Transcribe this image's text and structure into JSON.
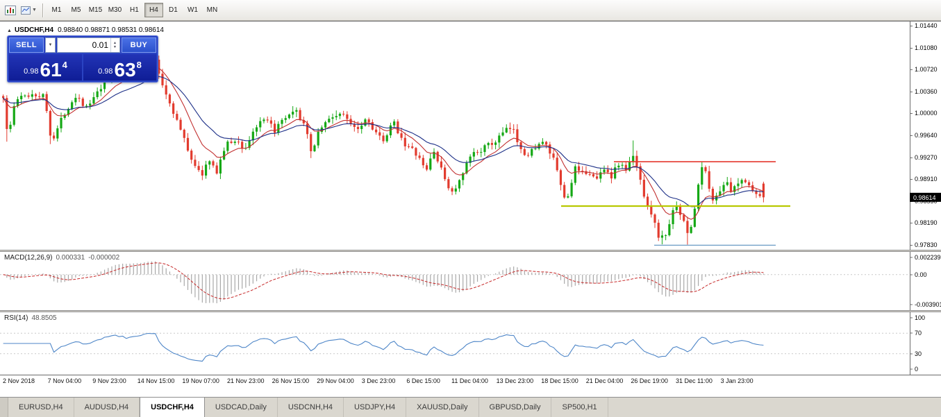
{
  "toolbar": {
    "timeframes": [
      {
        "label": "M1",
        "active": false
      },
      {
        "label": "M5",
        "active": false
      },
      {
        "label": "M15",
        "active": false
      },
      {
        "label": "M30",
        "active": false
      },
      {
        "label": "H1",
        "active": false
      },
      {
        "label": "H4",
        "active": true
      },
      {
        "label": "D1",
        "active": false
      },
      {
        "label": "W1",
        "active": false
      },
      {
        "label": "MN",
        "active": false
      }
    ]
  },
  "icons": {
    "collapse": "▲",
    "dropdown": "▼",
    "spin_up": "▲",
    "spin_down": "▼"
  },
  "chart": {
    "symbol_title": "USDCHF,H4",
    "ohlc": "0.98840 0.98871 0.98531 0.98614",
    "price_axis": [
      "1.01440",
      "1.01080",
      "1.00720",
      "1.00360",
      "1.00000",
      "0.99640",
      "0.99270",
      "0.98910",
      "0.98550",
      "0.98190",
      "0.97830"
    ],
    "current_price": "0.98614"
  },
  "trade_panel": {
    "sell_label": "SELL",
    "buy_label": "BUY",
    "volume": "0.01",
    "sell_price": {
      "prefix": "0.98",
      "big": "61",
      "pip": "4"
    },
    "buy_price": {
      "prefix": "0.98",
      "big": "63",
      "pip": "8"
    }
  },
  "macd_panel": {
    "title": "MACD(12,26,9)",
    "value_main": "0.000331",
    "value_signal": "-0.000002",
    "axis": [
      "0.002239",
      "0.00",
      "-0.003901"
    ]
  },
  "rsi_panel": {
    "title": "RSI(14)",
    "value": "48.8505",
    "axis": [
      "100",
      "70",
      "30",
      "0"
    ]
  },
  "time_axis": [
    "2 Nov 2018",
    "7 Nov 04:00",
    "9 Nov 23:00",
    "14 Nov 15:00",
    "19 Nov 07:00",
    "21 Nov 23:00",
    "26 Nov 15:00",
    "29 Nov 04:00",
    "3 Dec 23:00",
    "6 Dec 15:00",
    "11 Dec 04:00",
    "13 Dec 23:00",
    "18 Dec 15:00",
    "21 Dec 04:00",
    "26 Dec 19:00",
    "31 Dec 11:00",
    "3 Jan 23:00"
  ],
  "tabs": [
    {
      "label": "EURUSD,H4",
      "active": false
    },
    {
      "label": "AUDUSD,H4",
      "active": false
    },
    {
      "label": "USDCHF,H4",
      "active": true
    },
    {
      "label": "USDCAD,Daily",
      "active": false
    },
    {
      "label": "USDCNH,H4",
      "active": false
    },
    {
      "label": "USDJPY,H4",
      "active": false
    },
    {
      "label": "XAUUSD,Daily",
      "active": false
    },
    {
      "label": "GBPUSD,Daily",
      "active": false
    },
    {
      "label": "SP500,H1",
      "active": false
    }
  ],
  "chart_data": {
    "type": "candlestick",
    "symbol": "USDCHF",
    "timeframe": "H4",
    "ohlc": {
      "open": 0.9884,
      "high": 0.98871,
      "low": 0.98531,
      "close": 0.98614
    },
    "price_max": 1.0144,
    "price_min": 0.9783,
    "candle_count": 211,
    "seed": 1337,
    "ma_fast_period": 10,
    "ma_slow_period": 22,
    "colors": {
      "up": "#15a815",
      "down": "#e23b2e",
      "ma_fast": "#c23030",
      "ma_slow": "#1c2f87",
      "macd_hist": "#a8a8a8",
      "macd_signal": "#c62828",
      "rsi": "#4e86c8",
      "level_red": "#e4372d",
      "level_yellow": "#b8c800",
      "level_blue": "#70a0c8",
      "grid": "#c8c8c8"
    },
    "levels": [
      {
        "price": 0.992,
        "color_key": "level_red",
        "x1": 0.675,
        "x2": 0.853,
        "width": 1.6
      },
      {
        "price": 0.9847,
        "color_key": "level_yellow",
        "x1": 0.617,
        "x2": 0.869,
        "width": 2.2
      },
      {
        "price": 0.97825,
        "color_key": "level_blue",
        "x1": 0.719,
        "x2": 0.853,
        "width": 1.4
      }
    ],
    "spikes": [
      {
        "frac": 0.006,
        "dir": "low",
        "price": 0.9953
      },
      {
        "frac": 0.064,
        "dir": "low",
        "price": 0.9949
      },
      {
        "frac": 0.405,
        "dir": "low",
        "price": 0.9926
      },
      {
        "frac": 0.828,
        "dir": "high",
        "price": 0.9955
      },
      {
        "frac": 0.869,
        "dir": "low",
        "price": 0.9784
      },
      {
        "frac": 0.901,
        "dir": "low",
        "price": 0.97835
      },
      {
        "frac": 0.918,
        "dir": "high",
        "price": 0.99205
      }
    ],
    "macd": {
      "fast": 12,
      "slow": 26,
      "signal": 9,
      "ymax": 0.002239,
      "ymin": -0.003901
    },
    "rsi": {
      "period": 14,
      "levels": [
        70,
        30
      ],
      "ymax": 100,
      "ymin": 0
    },
    "price_path": [
      [
        0.0,
        1.0028
      ],
      [
        0.006,
        0.9958
      ],
      [
        0.016,
        1.0022
      ],
      [
        0.038,
        1.0032
      ],
      [
        0.054,
        1.0028
      ],
      [
        0.064,
        0.9952
      ],
      [
        0.08,
        1.0
      ],
      [
        0.096,
        1.003
      ],
      [
        0.11,
        1.0008
      ],
      [
        0.126,
        1.0036
      ],
      [
        0.146,
        1.0072
      ],
      [
        0.162,
        1.0058
      ],
      [
        0.176,
        1.0075
      ],
      [
        0.198,
        1.0092
      ],
      [
        0.21,
        1.0045
      ],
      [
        0.226,
        0.9996
      ],
      [
        0.246,
        0.993
      ],
      [
        0.26,
        0.9896
      ],
      [
        0.27,
        0.9922
      ],
      [
        0.28,
        0.9902
      ],
      [
        0.293,
        0.9948
      ],
      [
        0.306,
        0.9956
      ],
      [
        0.318,
        0.994
      ],
      [
        0.331,
        0.9976
      ],
      [
        0.345,
        0.9988
      ],
      [
        0.357,
        0.9972
      ],
      [
        0.371,
        0.999
      ],
      [
        0.385,
        1.0002
      ],
      [
        0.396,
        0.9982
      ],
      [
        0.405,
        0.9934
      ],
      [
        0.416,
        0.9975
      ],
      [
        0.431,
        0.9992
      ],
      [
        0.442,
        1.0
      ],
      [
        0.454,
        0.9988
      ],
      [
        0.467,
        0.9976
      ],
      [
        0.477,
        0.9992
      ],
      [
        0.489,
        0.9972
      ],
      [
        0.5,
        0.995
      ],
      [
        0.513,
        0.9986
      ],
      [
        0.529,
        0.9948
      ],
      [
        0.544,
        0.9932
      ],
      [
        0.556,
        0.9903
      ],
      [
        0.566,
        0.994
      ],
      [
        0.578,
        0.99
      ],
      [
        0.59,
        0.9868
      ],
      [
        0.601,
        0.9888
      ],
      [
        0.615,
        0.993
      ],
      [
        0.63,
        0.9942
      ],
      [
        0.645,
        0.995
      ],
      [
        0.658,
        0.9968
      ],
      [
        0.669,
        0.9976
      ],
      [
        0.679,
        0.9948
      ],
      [
        0.69,
        0.9928
      ],
      [
        0.701,
        0.9948
      ],
      [
        0.712,
        0.995
      ],
      [
        0.723,
        0.9926
      ],
      [
        0.733,
        0.9882
      ],
      [
        0.741,
        0.985
      ],
      [
        0.751,
        0.991
      ],
      [
        0.76,
        0.9898
      ],
      [
        0.77,
        0.9906
      ],
      [
        0.78,
        0.9888
      ],
      [
        0.79,
        0.9912
      ],
      [
        0.8,
        0.9896
      ],
      [
        0.81,
        0.9918
      ],
      [
        0.82,
        0.9905
      ],
      [
        0.828,
        0.993
      ],
      [
        0.836,
        0.9902
      ],
      [
        0.844,
        0.986
      ],
      [
        0.852,
        0.9838
      ],
      [
        0.861,
        0.98
      ],
      [
        0.869,
        0.9792
      ],
      [
        0.878,
        0.9826
      ],
      [
        0.886,
        0.9852
      ],
      [
        0.894,
        0.9822
      ],
      [
        0.901,
        0.98
      ],
      [
        0.908,
        0.9828
      ],
      [
        0.918,
        0.9914
      ],
      [
        0.926,
        0.9896
      ],
      [
        0.933,
        0.9852
      ],
      [
        0.941,
        0.9872
      ],
      [
        0.95,
        0.9888
      ],
      [
        0.958,
        0.9868
      ],
      [
        0.968,
        0.9886
      ],
      [
        0.978,
        0.9892
      ],
      [
        0.988,
        0.9866
      ],
      [
        1.0,
        0.98614
      ]
    ]
  }
}
